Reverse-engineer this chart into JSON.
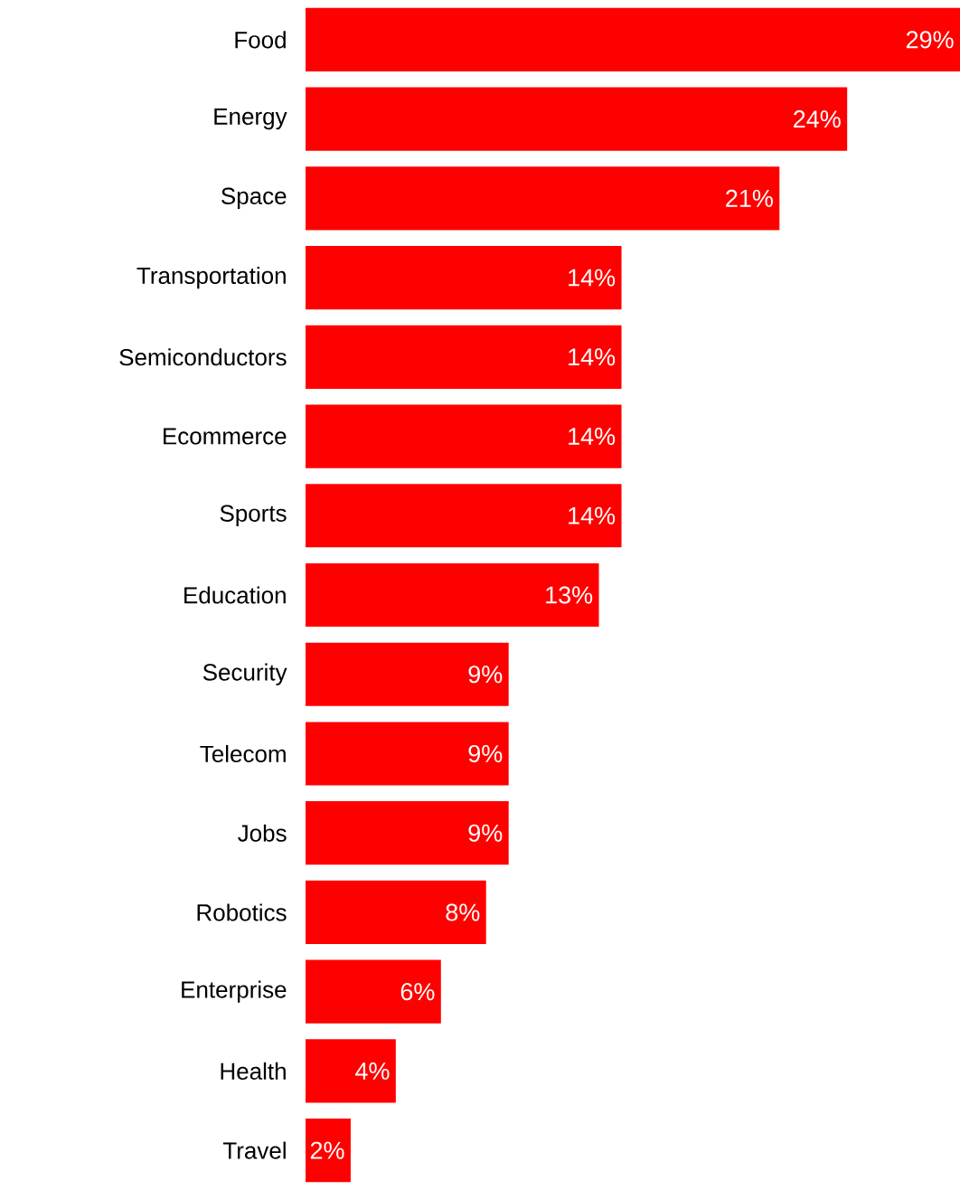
{
  "chart_data": {
    "type": "bar",
    "orientation": "horizontal",
    "color": "#ff0000",
    "categories": [
      "Food",
      "Energy",
      "Space",
      "Transportation",
      "Semiconductors",
      "Ecommerce",
      "Sports",
      "Education",
      "Security",
      "Telecom",
      "Jobs",
      "Robotics",
      "Enterprise",
      "Health",
      "Travel"
    ],
    "values": [
      29,
      24,
      21,
      14,
      14,
      14,
      14,
      13,
      9,
      9,
      9,
      8,
      6,
      4,
      2
    ],
    "value_labels": [
      "29%",
      "24%",
      "21%",
      "14%",
      "14%",
      "14%",
      "14%",
      "13%",
      "9%",
      "9%",
      "9%",
      "8%",
      "6%",
      "4%",
      "2%"
    ]
  }
}
